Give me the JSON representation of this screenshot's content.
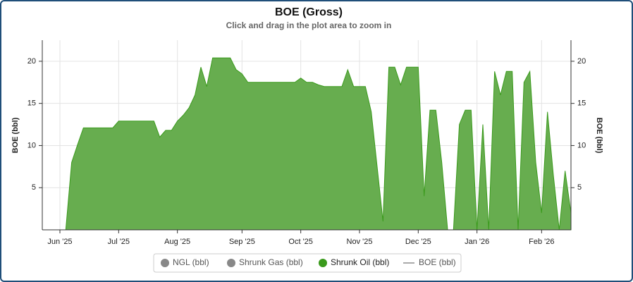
{
  "chart_data": {
    "type": "area",
    "title": "BOE (Gross)",
    "subtitle": "Click and drag in the plot area to zoom in",
    "y_label": "BOE (bbl)",
    "y2_label": "BOE (bbl)",
    "categories": [
      null,
      null,
      null,
      "Jun '25",
      null,
      null,
      null,
      null,
      null,
      null,
      null,
      null,
      null,
      "Jul '25",
      null,
      null,
      null,
      null,
      null,
      null,
      null,
      null,
      null,
      "Aug '25",
      null,
      null,
      null,
      null,
      null,
      null,
      null,
      null,
      null,
      null,
      "Sep '25",
      null,
      null,
      null,
      null,
      null,
      null,
      null,
      null,
      null,
      "Oct '25",
      null,
      null,
      null,
      null,
      null,
      null,
      null,
      null,
      null,
      "Nov '25",
      null,
      null,
      null,
      null,
      null,
      null,
      null,
      null,
      null,
      "Dec '25",
      null,
      null,
      null,
      null,
      null,
      null,
      null,
      null,
      null,
      "Jan '26",
      null,
      null,
      null,
      null,
      null,
      null,
      null,
      null,
      null,
      null,
      "Feb '26",
      null,
      null,
      null,
      null,
      null
    ],
    "ylim": [
      0,
      22.5
    ],
    "yticks": [
      5,
      10,
      15,
      20
    ],
    "y2lim": [
      0,
      22.5
    ],
    "y2ticks": [
      5,
      10,
      15,
      20
    ],
    "grid": true,
    "legend": "bottom",
    "series": [
      {
        "name": "NGL (bbl)",
        "color": "#888888",
        "visible": false,
        "marker": "circle"
      },
      {
        "name": "Shrunk Gas (bbl)",
        "color": "#888888",
        "visible": false,
        "marker": "circle"
      },
      {
        "name": "Shrunk Oil (bbl)",
        "color": "#3a9a1c",
        "fill": "#67ad4f",
        "visible": true,
        "marker": "circle",
        "values": [
          null,
          0,
          0,
          0,
          0,
          8,
          10.1,
          12.1,
          12.1,
          12.1,
          12.1,
          12.1,
          12.1,
          12.9,
          12.9,
          12.9,
          12.9,
          12.9,
          12.9,
          12.9,
          11,
          11.8,
          11.8,
          12.9,
          13.6,
          14.5,
          16,
          19.3,
          17,
          20.4,
          20.4,
          20.4,
          20.4,
          19,
          18.5,
          17.5,
          17.5,
          17.5,
          17.5,
          17.5,
          17.5,
          17.5,
          17.5,
          17.5,
          18,
          17.5,
          17.5,
          17.2,
          17,
          17,
          17,
          17,
          19,
          17,
          17,
          17,
          14,
          7.5,
          1,
          19.3,
          19.3,
          17.2,
          19.3,
          19.3,
          19.3,
          4,
          14.2,
          14.2,
          8,
          0,
          0,
          12.5,
          14.2,
          14.2,
          0,
          12.5,
          0,
          18.8,
          16,
          18.8,
          18.8,
          0,
          17.5,
          18.8,
          8,
          2,
          14,
          6.5,
          0,
          7,
          2
        ]
      },
      {
        "name": "BOE (bbl)",
        "color": "#aaaaaa",
        "visible": false,
        "marker": "line"
      }
    ]
  }
}
